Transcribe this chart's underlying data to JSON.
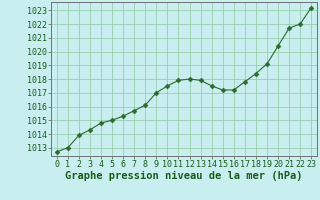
{
  "x": [
    0,
    1,
    2,
    3,
    4,
    5,
    6,
    7,
    8,
    9,
    10,
    11,
    12,
    13,
    14,
    15,
    16,
    17,
    18,
    19,
    20,
    21,
    22,
    23
  ],
  "y": [
    1012.7,
    1013.0,
    1013.9,
    1014.3,
    1014.8,
    1015.0,
    1015.3,
    1015.7,
    1016.1,
    1017.0,
    1017.5,
    1017.9,
    1018.0,
    1017.9,
    1017.5,
    1017.2,
    1017.2,
    1017.8,
    1018.4,
    1019.1,
    1020.4,
    1021.7,
    1022.0,
    1023.2
  ],
  "line_color": "#2d6a2d",
  "marker": "D",
  "marker_size": 2.5,
  "background_color": "#c8eef0",
  "grid_color": "#90c8a0",
  "xlabel": "Graphe pression niveau de la mer (hPa)",
  "xlabel_color": "#1a5c1a",
  "xlabel_fontsize": 7.5,
  "tick_color": "#1a5c1a",
  "tick_fontsize": 6,
  "ylim": [
    1012.4,
    1023.6
  ],
  "xlim": [
    -0.5,
    23.5
  ],
  "yticks": [
    1013,
    1014,
    1015,
    1016,
    1017,
    1018,
    1019,
    1020,
    1021,
    1022,
    1023
  ],
  "xticks": [
    0,
    1,
    2,
    3,
    4,
    5,
    6,
    7,
    8,
    9,
    10,
    11,
    12,
    13,
    14,
    15,
    16,
    17,
    18,
    19,
    20,
    21,
    22,
    23
  ]
}
